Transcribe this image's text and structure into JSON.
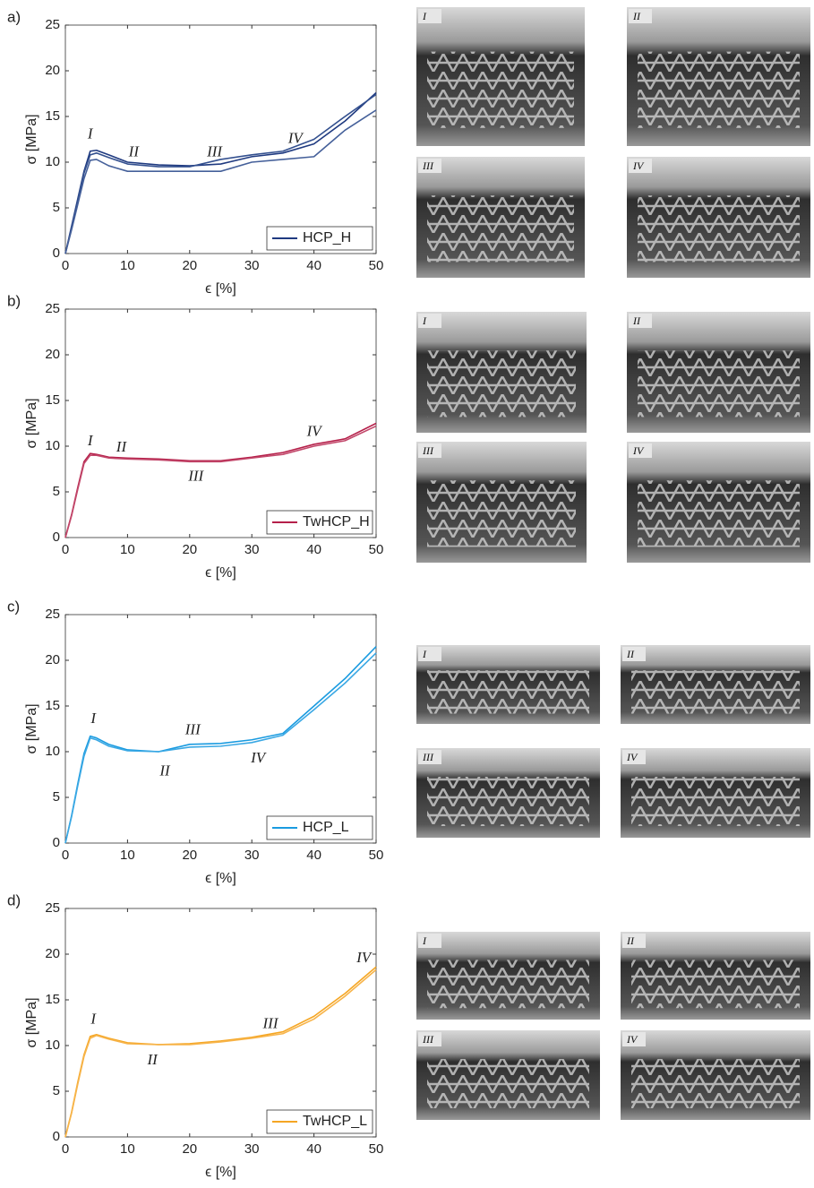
{
  "chart_data": [
    {
      "type": "line",
      "panel_label": "a)",
      "xlabel": "ϵ [%]",
      "ylabel": "σ [MPa]",
      "xlim": [
        0,
        50
      ],
      "ylim": [
        0,
        25
      ],
      "xticks": [
        0,
        10,
        20,
        30,
        40,
        50
      ],
      "yticks": [
        0,
        5,
        10,
        15,
        20,
        25
      ],
      "legend": "lower right",
      "annotations": [
        "I",
        "II",
        "III",
        "IV"
      ],
      "photo_labels": [
        "I",
        "II",
        "III",
        "IV"
      ],
      "x": [
        0,
        1,
        2,
        3,
        4,
        5,
        7,
        10,
        15,
        20,
        25,
        30,
        35,
        40,
        45,
        50
      ],
      "series": [
        {
          "name": "HCP_H",
          "color": "#1f3a80",
          "values": [
            0,
            3,
            6,
            9,
            11.2,
            11.3,
            10.8,
            10,
            9.7,
            9.6,
            9.8,
            10.6,
            11,
            12,
            14.5,
            17.6
          ]
        },
        {
          "color": "#33508f",
          "values": [
            0,
            2.8,
            5.8,
            8.8,
            10.8,
            11,
            10.5,
            9.8,
            9.5,
            9.5,
            10.3,
            10.8,
            11.2,
            12.5,
            15,
            17.4
          ]
        },
        {
          "color": "#45609a",
          "values": [
            0,
            2.6,
            5.4,
            8.2,
            10.2,
            10.3,
            9.6,
            9,
            9,
            9,
            9,
            10,
            10.3,
            10.6,
            13.5,
            15.7
          ]
        }
      ]
    },
    {
      "type": "line",
      "panel_label": "b)",
      "xlabel": "ϵ [%]",
      "ylabel": "σ [MPa]",
      "xlim": [
        0,
        50
      ],
      "ylim": [
        0,
        25
      ],
      "xticks": [
        0,
        10,
        20,
        30,
        40,
        50
      ],
      "yticks": [
        0,
        5,
        10,
        15,
        20,
        25
      ],
      "legend": "lower right",
      "annotations": [
        "I",
        "II",
        "III",
        "IV"
      ],
      "photo_labels": [
        "I",
        "II",
        "III",
        "IV"
      ],
      "x": [
        0,
        1,
        2,
        3,
        4,
        5,
        7,
        10,
        15,
        20,
        25,
        30,
        35,
        40,
        45,
        50
      ],
      "series": [
        {
          "name": "TwHCP_H",
          "color": "#b5204a",
          "values": [
            0,
            2.5,
            5.5,
            8.3,
            9.2,
            9.1,
            8.8,
            8.7,
            8.6,
            8.4,
            8.4,
            8.8,
            9.3,
            10.2,
            10.8,
            12.5
          ]
        },
        {
          "color": "#c2476a",
          "values": [
            0,
            2.4,
            5.3,
            8.1,
            9,
            9,
            8.7,
            8.6,
            8.5,
            8.3,
            8.3,
            8.7,
            9.1,
            10,
            10.6,
            12.2
          ]
        }
      ]
    },
    {
      "type": "line",
      "panel_label": "c)",
      "xlabel": "ϵ [%]",
      "ylabel": "σ [MPa]",
      "xlim": [
        0,
        50
      ],
      "ylim": [
        0,
        25
      ],
      "xticks": [
        0,
        10,
        20,
        30,
        40,
        50
      ],
      "yticks": [
        0,
        5,
        10,
        15,
        20,
        25
      ],
      "legend": "lower right",
      "annotations": [
        "I",
        "II",
        "III",
        "IV"
      ],
      "photo_labels": [
        "I",
        "II",
        "III",
        "IV"
      ],
      "x": [
        0,
        1,
        2,
        3,
        4,
        5,
        7,
        10,
        15,
        20,
        25,
        30,
        35,
        40,
        45,
        50
      ],
      "series": [
        {
          "name": "HCP_L",
          "color": "#1a9be0",
          "values": [
            0,
            3,
            6.5,
            9.8,
            11.7,
            11.5,
            10.8,
            10.2,
            10,
            10.8,
            10.9,
            11.3,
            12,
            15,
            18,
            21.5
          ]
        },
        {
          "color": "#3aa8e4",
          "values": [
            0,
            2.9,
            6.3,
            9.5,
            11.5,
            11.3,
            10.6,
            10.1,
            10,
            10.5,
            10.6,
            11,
            11.8,
            14.6,
            17.5,
            20.8
          ]
        }
      ]
    },
    {
      "type": "line",
      "panel_label": "d)",
      "xlabel": "ϵ [%]",
      "ylabel": "σ [MPa]",
      "xlim": [
        0,
        50
      ],
      "ylim": [
        0,
        25
      ],
      "xticks": [
        0,
        10,
        20,
        30,
        40,
        50
      ],
      "yticks": [
        0,
        5,
        10,
        15,
        20,
        25
      ],
      "legend": "lower right",
      "annotations": [
        "I",
        "II",
        "III",
        "IV"
      ],
      "photo_labels": [
        "I",
        "II",
        "III",
        "IV"
      ],
      "x": [
        0,
        1,
        2,
        3,
        4,
        5,
        7,
        10,
        15,
        20,
        25,
        30,
        35,
        40,
        45,
        50
      ],
      "series": [
        {
          "name": "TwHCP_L",
          "color": "#f5a623",
          "values": [
            0,
            2.7,
            6,
            9,
            11,
            11.2,
            10.8,
            10.3,
            10.1,
            10.2,
            10.5,
            10.9,
            11.5,
            13.2,
            15.7,
            18.6
          ]
        },
        {
          "color": "#f7b44a",
          "values": [
            0,
            2.6,
            5.8,
            8.8,
            10.8,
            11.1,
            10.7,
            10.2,
            10.1,
            10.1,
            10.4,
            10.8,
            11.3,
            12.9,
            15.4,
            18.3
          ]
        }
      ]
    }
  ]
}
